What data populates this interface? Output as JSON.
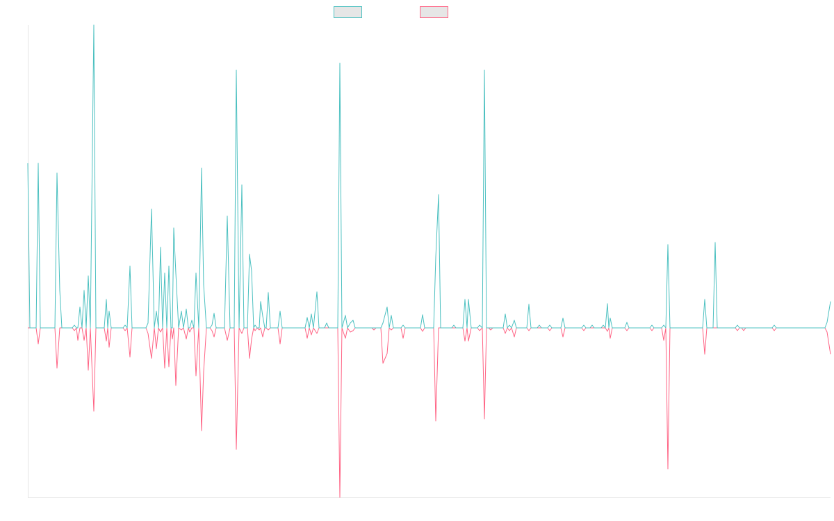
{
  "chart_data": {
    "type": "line",
    "x": [
      40,
      43,
      52,
      55,
      58,
      79,
      82,
      86,
      89,
      104,
      107,
      110,
      112,
      115,
      118,
      121,
      124,
      127,
      130,
      135,
      138,
      150,
      153,
      155,
      157,
      160,
      177,
      180,
      183,
      187,
      190,
      210,
      213,
      218,
      222,
      225,
      228,
      231,
      234,
      237,
      240,
      243,
      246,
      248,
      250,
      253,
      257,
      261,
      264,
      268,
      271,
      273,
      276,
      279,
      282,
      286,
      290,
      293,
      297,
      302,
      305,
      308,
      311,
      323,
      327,
      331,
      337,
      340,
      344,
      348,
      351,
      356,
      359,
      362,
      365,
      367,
      370,
      373,
      375,
      378,
      381,
      383,
      386,
      389,
      400,
      403,
      406,
      439,
      442,
      445,
      448,
      451,
      456,
      459,
      467,
      470,
      473,
      486,
      489,
      492,
      497,
      500,
      504,
      508,
      511,
      535,
      538,
      541,
      548,
      551,
      557,
      560,
      563,
      566,
      577,
      580,
      583,
      605,
      608,
      611,
      624,
      627,
      631,
      634,
      650,
      653,
      656,
      666,
      669,
      672,
      674,
      678,
      687,
      690,
      694,
      697,
      700,
      703,
      706,
      709,
      724,
      727,
      730,
      733,
      736,
      740,
      743,
      758,
      761,
      764,
      773,
      776,
      779,
      788,
      791,
      794,
      807,
      810,
      813,
      837,
      840,
      843,
      849,
      852,
      855,
      865,
      868,
      871,
      874,
      876,
      878,
      881,
      899,
      902,
      905,
      935,
      938,
      941,
      952,
      955,
      958,
      961,
      964,
      1011,
      1014,
      1017,
      1026,
      1029,
      1032,
      1058,
      1061,
      1064,
      1067,
      1070,
      1073,
      1111,
      1114,
      1117,
      1187,
      1190,
      1195
    ],
    "series": [
      {
        "color": "#4bc0c0",
        "values": [
          237,
          0,
          0,
          237,
          0,
          0,
          223,
          54,
          0,
          0,
          4,
          0,
          0,
          30,
          0,
          54,
          0,
          75,
          0,
          436,
          0,
          0,
          41,
          0,
          24,
          0,
          0,
          4,
          0,
          89,
          0,
          0,
          7,
          171,
          0,
          24,
          0,
          116,
          0,
          79,
          0,
          89,
          0,
          0,
          144,
          79,
          0,
          24,
          0,
          27,
          0,
          0,
          11,
          0,
          79,
          0,
          230,
          62,
          0,
          0,
          4,
          21,
          0,
          0,
          161,
          0,
          0,
          371,
          0,
          206,
          0,
          0,
          106,
          82,
          0,
          4,
          0,
          0,
          38,
          17,
          0,
          0,
          51,
          0,
          0,
          24,
          0,
          0,
          15,
          0,
          20,
          0,
          52,
          0,
          0,
          7,
          0,
          0,
          381,
          0,
          18,
          0,
          7,
          11,
          0,
          0,
          0,
          0,
          0,
          7,
          30,
          0,
          18,
          0,
          0,
          4,
          0,
          0,
          19,
          0,
          0,
          102,
          192,
          0,
          0,
          4,
          0,
          0,
          41,
          0,
          41,
          0,
          0,
          4,
          0,
          371,
          0,
          0,
          0,
          0,
          0,
          20,
          0,
          4,
          0,
          11,
          0,
          0,
          34,
          0,
          0,
          4,
          0,
          0,
          4,
          0,
          0,
          14,
          0,
          0,
          4,
          0,
          0,
          4,
          0,
          0,
          4,
          0,
          35,
          0,
          14,
          0,
          0,
          8,
          0,
          0,
          4,
          0,
          0,
          4,
          0,
          120,
          0,
          0,
          41,
          0,
          0,
          123,
          0,
          0,
          4,
          0,
          0,
          0,
          0,
          0,
          4,
          0,
          0,
          8,
          38
        ]
      },
      {
        "color": "#ff6384",
        "values": [
          0,
          0,
          0,
          -23,
          0,
          0,
          -58,
          0,
          0,
          0,
          -4,
          0,
          -18,
          0,
          0,
          -18,
          0,
          -61,
          0,
          -120,
          0,
          0,
          -19,
          0,
          -28,
          0,
          0,
          -4,
          0,
          -42,
          0,
          0,
          -8,
          -44,
          0,
          -30,
          0,
          -6,
          0,
          -58,
          0,
          -56,
          0,
          -16,
          0,
          -83,
          0,
          -3,
          0,
          -16,
          0,
          -6,
          0,
          0,
          -69,
          0,
          -148,
          -63,
          0,
          0,
          -4,
          -13,
          0,
          0,
          -18,
          0,
          0,
          -175,
          0,
          -8,
          0,
          0,
          -44,
          -16,
          0,
          -4,
          0,
          -3,
          0,
          -13,
          0,
          0,
          -3,
          0,
          0,
          -23,
          0,
          0,
          -15,
          0,
          -10,
          0,
          -8,
          0,
          0,
          0,
          0,
          0,
          -244,
          0,
          -15,
          0,
          -6,
          -4,
          0,
          0,
          -3,
          0,
          0,
          -51,
          -37,
          0,
          -3,
          0,
          0,
          -15,
          0,
          0,
          -5,
          0,
          0,
          -134,
          0,
          0,
          0,
          0,
          0,
          0,
          -19,
          0,
          -19,
          0,
          0,
          -4,
          0,
          -131,
          0,
          0,
          -3,
          0,
          0,
          -8,
          0,
          -4,
          0,
          -13,
          0,
          0,
          -4,
          0,
          0,
          0,
          0,
          0,
          -4,
          0,
          0,
          -13,
          0,
          0,
          -4,
          0,
          0,
          0,
          0,
          0,
          0,
          0,
          -5,
          0,
          -15,
          0,
          0,
          -4,
          0,
          0,
          -4,
          0,
          0,
          -18,
          0,
          -203,
          0,
          0,
          -38,
          0,
          0,
          0,
          0,
          0,
          -4,
          0,
          0,
          -4,
          0,
          0,
          -4,
          0,
          0,
          -6,
          -38
        ]
      }
    ],
    "xlim": [
      40,
      1195
    ],
    "ylim": [
      -244,
      436
    ]
  }
}
